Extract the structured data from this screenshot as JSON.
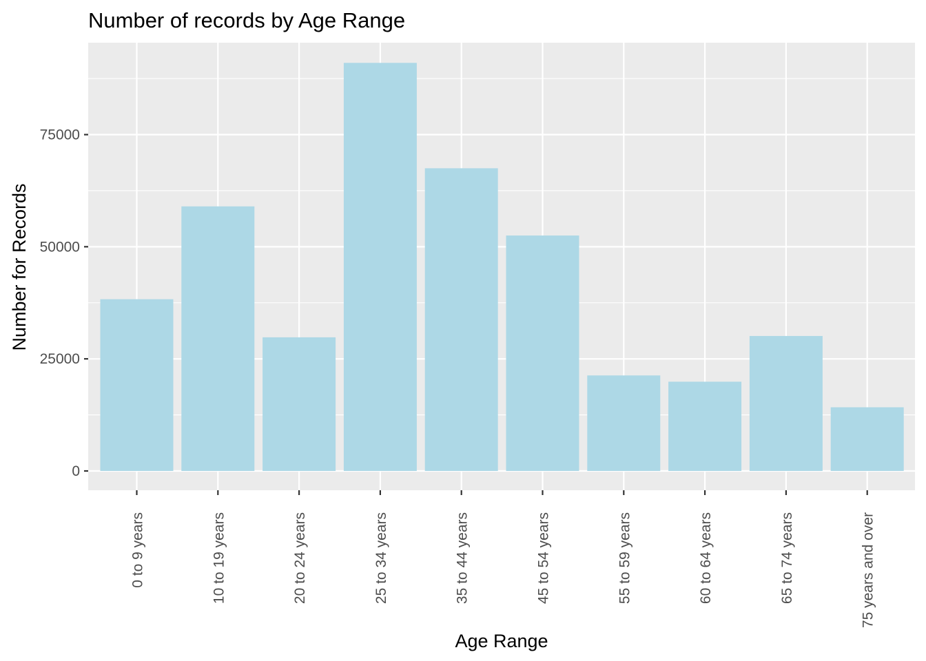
{
  "chart_data": {
    "type": "bar",
    "title": "Number of records by Age Range",
    "xlabel": "Age Range",
    "ylabel": "Number for Records",
    "categories": [
      "0 to 9 years",
      "10 to 19 years",
      "20 to 24 years",
      "25 to 34 years",
      "35 to 44 years",
      "45 to 54 years",
      "55 to 59 years",
      "60 to 64 years",
      "65 to 74 years",
      "75 years and over"
    ],
    "values": [
      38300,
      59000,
      29800,
      91000,
      67500,
      52500,
      21300,
      19900,
      30100,
      14200
    ],
    "ylim": [
      -4300,
      95500
    ],
    "yticks": [
      0,
      25000,
      50000,
      75000
    ],
    "ytick_labels": [
      "0",
      "25000",
      "50000",
      "75000"
    ],
    "grid": true,
    "colors": {
      "bar": "#ADD8E6",
      "panel": "#EBEBEB",
      "grid": "#FFFFFF",
      "text": "#000000",
      "tick_text": "#4D4D4D",
      "tick_mark": "#333333"
    }
  }
}
